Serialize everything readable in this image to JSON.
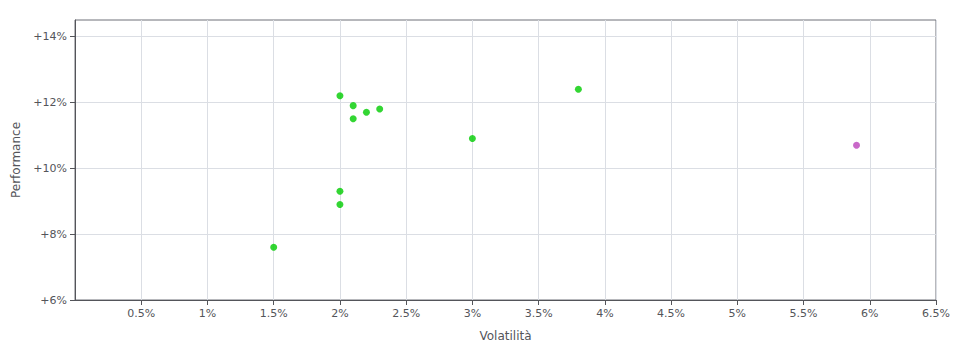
{
  "chart_data": {
    "type": "scatter",
    "xlabel": "Volatilità",
    "ylabel": "Performance",
    "xlim": [
      0.0,
      0.065
    ],
    "ylim": [
      0.06,
      0.145
    ],
    "xticks": [
      {
        "value": 0.005,
        "label": "0.5%"
      },
      {
        "value": 0.01,
        "label": "1%"
      },
      {
        "value": 0.015,
        "label": "1.5%"
      },
      {
        "value": 0.02,
        "label": "2%"
      },
      {
        "value": 0.025,
        "label": "2.5%"
      },
      {
        "value": 0.03,
        "label": "3%"
      },
      {
        "value": 0.035,
        "label": "3.5%"
      },
      {
        "value": 0.04,
        "label": "4%"
      },
      {
        "value": 0.045,
        "label": "4.5%"
      },
      {
        "value": 0.05,
        "label": "5%"
      },
      {
        "value": 0.055,
        "label": "5.5%"
      },
      {
        "value": 0.06,
        "label": "6%"
      },
      {
        "value": 0.065,
        "label": "6.5%"
      }
    ],
    "yticks": [
      {
        "value": 0.06,
        "label": "+6%"
      },
      {
        "value": 0.08,
        "label": "+8%"
      },
      {
        "value": 0.1,
        "label": "+10%"
      },
      {
        "value": 0.12,
        "label": "+12%"
      },
      {
        "value": 0.14,
        "label": "+14%"
      }
    ],
    "grid": true,
    "series": [
      {
        "color": "#00cc00",
        "x": [
          0.015,
          0.02,
          0.02,
          0.021,
          0.021,
          0.022,
          0.023,
          0.02,
          0.03,
          0.038
        ],
        "values": [
          0.076,
          0.093,
          0.089,
          0.115,
          0.119,
          0.117,
          0.118,
          0.122,
          0.109,
          0.124
        ]
      },
      {
        "color": "#bb44bb",
        "x": [
          0.059
        ],
        "values": [
          0.107
        ]
      }
    ]
  }
}
